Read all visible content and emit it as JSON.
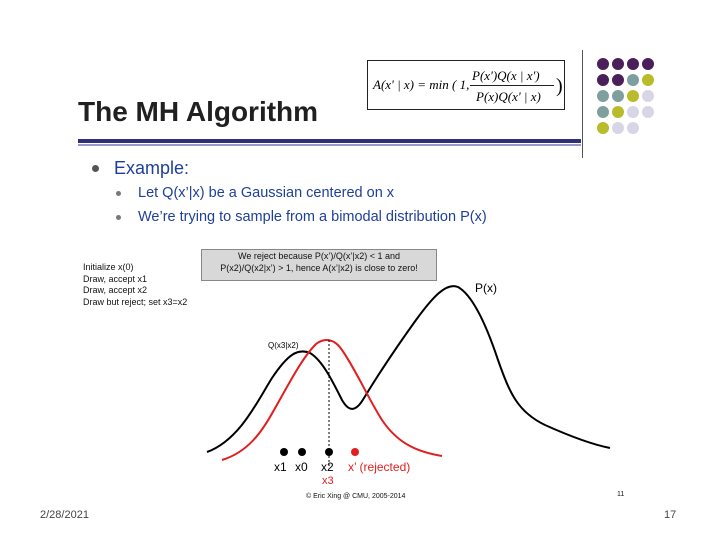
{
  "slide": {
    "title": "The MH Algorithm",
    "formula": {
      "lhs": "A(x' | x) = min ( 1,",
      "numerator": "P(x')Q(x | x')",
      "denominator": "P(x)Q(x' | x)",
      "close": ")"
    },
    "bullets": {
      "main": "Example:",
      "sub1": "Let Q(x’|x) be a Gaussian centered on x",
      "sub2": "We’re trying to sample from a bimodal distribution P(x)"
    },
    "steps": [
      "Initialize x(0)",
      "Draw, accept x1",
      "Draw, accept x2",
      "Draw but reject; set x3=x2"
    ],
    "note": {
      "line1": "We reject because P(x’)/Q(x’|x2) < 1 and",
      "line2": "P(x2)/Q(x2|x’) > 1, hence A(x’|x2) is close to zero!"
    },
    "curve_labels": {
      "p": "P(x)",
      "q": "Q(x3|x2)"
    },
    "points": [
      {
        "label": "x1",
        "color": "#000000"
      },
      {
        "label": "x0",
        "color": "#000000"
      },
      {
        "label": "x2",
        "color": "#000000",
        "sublabel": "x3"
      },
      {
        "label": "x’ (rejected)",
        "color": "#e02020"
      }
    ],
    "copyright": "© Eric Xing @ CMU, 2005-2014",
    "inner_page": "11",
    "date": "2/28/2021",
    "page_number": "17",
    "colors": {
      "title": "#202020",
      "bullet_text": "#1f3f99",
      "rule": "#2f2f7a",
      "purple": "#4a1f5a",
      "teal": "#7f9f9f",
      "olive": "#b8bb2a",
      "lavender": "#d8d6e6",
      "q_curve": "#e02020"
    },
    "decor_dots": [
      [
        "purple",
        "purple",
        "purple",
        "purple"
      ],
      [
        "purple",
        "purple",
        "teal",
        "olive"
      ],
      [
        "teal",
        "teal",
        "olive",
        "lavender"
      ],
      [
        "teal",
        "olive",
        "lavender",
        "lavender"
      ],
      [
        "olive",
        "lavender",
        "lavender",
        ""
      ]
    ]
  }
}
